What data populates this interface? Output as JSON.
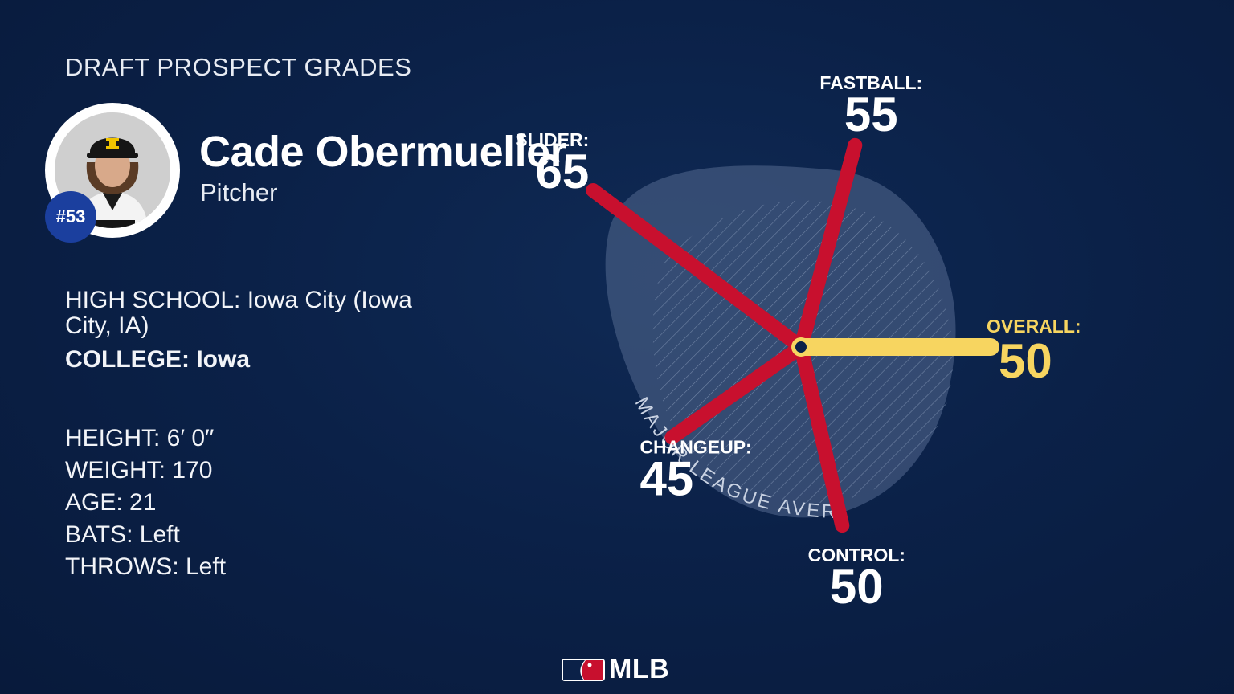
{
  "header": {
    "title": "DRAFT PROSPECT GRADES"
  },
  "player": {
    "name": "Cade Obermueller",
    "position": "Pitcher",
    "number": "#53"
  },
  "schools": {
    "high_school_label": "HIGH SCHOOL:",
    "high_school_value": "Iowa City (Iowa City, IA)",
    "college_label": "COLLEGE:",
    "college_value": "Iowa"
  },
  "stats": {
    "height": "HEIGHT: 6′ 0′′",
    "weight": "WEIGHT: 170",
    "age": "AGE: 21",
    "bats": "BATS: Left",
    "throws": "THROWS: Left"
  },
  "brand": {
    "logo_text": "MLB"
  },
  "colors": {
    "background": "#0b2148",
    "grade_bar": "#c8102e",
    "overall_bar": "#f7d560",
    "average_area": "#4a5f86",
    "text": "#ffffff"
  },
  "chart_data": {
    "type": "radial",
    "average_label": "MAJOR LEAGUE AVERAGE",
    "average_value": 50,
    "scale": [
      20,
      80
    ],
    "tools": [
      {
        "label": "FASTBALL:",
        "value": 55
      },
      {
        "label": "SLIDER:",
        "value": 65
      },
      {
        "label": "CHANGEUP:",
        "value": 45
      },
      {
        "label": "CONTROL:",
        "value": 50
      }
    ],
    "overall": {
      "label": "OVERALL:",
      "value": 50
    }
  }
}
